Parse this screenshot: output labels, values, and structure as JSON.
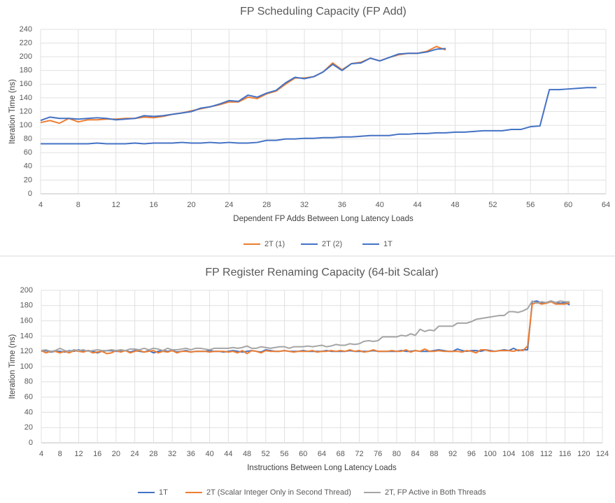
{
  "chart_data": [
    {
      "type": "line",
      "title": "FP Scheduling Capacity (FP Add)",
      "x_label": "Dependent FP Adds Between Long Latency Loads",
      "y_label": "Iteration Time (ns)",
      "x": [
        4,
        5,
        6,
        7,
        8,
        9,
        10,
        11,
        12,
        13,
        14,
        15,
        16,
        17,
        18,
        19,
        20,
        21,
        22,
        23,
        24,
        25,
        26,
        27,
        28,
        29,
        30,
        31,
        32,
        33,
        34,
        35,
        36,
        37,
        38,
        39,
        40,
        41,
        42,
        43,
        44,
        45,
        46,
        47,
        48,
        49,
        50,
        51,
        52,
        53,
        54,
        55,
        56,
        57,
        58,
        59,
        60,
        61,
        62,
        63
      ],
      "xlim": [
        4,
        64
      ],
      "xticks": [
        4,
        8,
        12,
        16,
        20,
        24,
        28,
        32,
        36,
        40,
        44,
        48,
        52,
        56,
        60,
        64
      ],
      "ylim": [
        0,
        240
      ],
      "yticks": [
        0,
        20,
        40,
        60,
        80,
        100,
        120,
        140,
        160,
        180,
        200,
        220,
        240
      ],
      "grid": true,
      "legend": "bottom",
      "series": [
        {
          "name": "2T (1)",
          "color": "#ed7d31",
          "values": [
            104,
            107,
            103,
            110,
            105,
            108,
            108,
            109,
            109,
            110,
            110,
            112,
            111,
            113,
            116,
            118,
            121,
            124,
            127,
            130,
            134,
            134,
            141,
            139,
            146,
            150,
            160,
            169,
            169,
            171,
            178,
            191,
            181,
            190,
            192,
            198,
            194,
            199,
            203,
            205,
            205,
            208,
            215,
            210,
            null,
            null,
            null,
            null,
            null,
            null,
            null,
            null,
            null,
            null,
            null,
            null,
            null,
            null,
            null,
            null
          ]
        },
        {
          "name": "2T (2)",
          "color": "#4472c4",
          "values": [
            107,
            112,
            110,
            110,
            109,
            110,
            111,
            110,
            108,
            109,
            110,
            114,
            113,
            114,
            116,
            118,
            120,
            125,
            127,
            131,
            136,
            135,
            144,
            141,
            147,
            151,
            162,
            170,
            168,
            171,
            178,
            189,
            180,
            190,
            191,
            198,
            194,
            199,
            204,
            205,
            205,
            207,
            211,
            212,
            null,
            null,
            null,
            null,
            null,
            null,
            null,
            null,
            null,
            null,
            null,
            null,
            null,
            null,
            null,
            null
          ]
        },
        {
          "name": "1T",
          "color": "#4472c4",
          "values": [
            73,
            73,
            73,
            73,
            73,
            73,
            74,
            73,
            73,
            73,
            74,
            73,
            74,
            74,
            74,
            75,
            74,
            74,
            75,
            74,
            75,
            74,
            74,
            75,
            78,
            78,
            80,
            80,
            81,
            81,
            82,
            82,
            83,
            83,
            84,
            85,
            85,
            85,
            87,
            87,
            88,
            88,
            89,
            89,
            90,
            90,
            91,
            92,
            92,
            92,
            94,
            94,
            98,
            99,
            152,
            152,
            153,
            154,
            155,
            155
          ]
        }
      ]
    },
    {
      "type": "line",
      "title": "FP Register Renaming Capacity (64-bit Scalar)",
      "x_label": "Instructions Between Long Latency Loads",
      "y_label": "Iteration Time (ns)",
      "x": [
        4,
        5,
        6,
        7,
        8,
        9,
        10,
        11,
        12,
        13,
        14,
        15,
        16,
        17,
        18,
        19,
        20,
        21,
        22,
        23,
        24,
        25,
        26,
        27,
        28,
        29,
        30,
        31,
        32,
        33,
        34,
        35,
        36,
        37,
        38,
        39,
        40,
        41,
        42,
        43,
        44,
        45,
        46,
        47,
        48,
        49,
        50,
        51,
        52,
        53,
        54,
        55,
        56,
        57,
        58,
        59,
        60,
        61,
        62,
        63,
        64,
        65,
        66,
        67,
        68,
        69,
        70,
        71,
        72,
        73,
        74,
        75,
        76,
        77,
        78,
        79,
        80,
        81,
        82,
        83,
        84,
        85,
        86,
        87,
        88,
        89,
        90,
        91,
        92,
        93,
        94,
        95,
        96,
        97,
        98,
        99,
        100,
        101,
        102,
        103,
        104,
        105,
        106,
        107,
        108,
        109,
        110,
        111,
        112,
        113,
        114,
        115,
        116,
        117
      ],
      "xlim": [
        4,
        124
      ],
      "xticks": [
        4,
        8,
        12,
        16,
        20,
        24,
        28,
        32,
        36,
        40,
        44,
        48,
        52,
        56,
        60,
        64,
        68,
        72,
        76,
        80,
        84,
        88,
        92,
        96,
        100,
        104,
        108,
        112,
        116,
        120,
        124
      ],
      "ylim": [
        0,
        200
      ],
      "yticks": [
        0,
        20,
        40,
        60,
        80,
        100,
        120,
        140,
        160,
        180,
        200
      ],
      "grid": true,
      "legend": "bottom",
      "series": [
        {
          "name": "1T",
          "color": "#4472c4",
          "values": [
            120,
            121,
            119,
            120,
            120,
            119,
            121,
            120,
            122,
            120,
            121,
            120,
            118,
            120,
            121,
            121,
            120,
            120,
            121,
            119,
            121,
            120,
            119,
            121,
            118,
            120,
            121,
            120,
            121,
            119,
            120,
            121,
            119,
            120,
            120,
            120,
            121,
            120,
            120,
            119,
            120,
            121,
            120,
            119,
            120,
            121,
            120,
            119,
            122,
            121,
            120,
            120,
            121,
            120,
            120,
            120,
            121,
            120,
            120,
            120,
            120,
            121,
            120,
            120,
            120,
            120,
            121,
            120,
            120,
            120,
            120,
            121,
            120,
            120,
            120,
            120,
            120,
            121,
            120,
            120,
            121,
            120,
            120,
            120,
            121,
            122,
            121,
            120,
            120,
            123,
            121,
            120,
            121,
            121,
            120,
            122,
            121,
            120,
            121,
            122,
            121,
            124,
            121,
            122,
            122,
            185,
            186,
            183,
            184,
            186,
            184,
            183,
            184,
            181
          ]
        },
        {
          "name": "2T (Scalar Integer Only in Second Thread)",
          "color": "#ed7d31",
          "values": [
            121,
            118,
            120,
            120,
            118,
            120,
            118,
            121,
            120,
            119,
            121,
            118,
            119,
            120,
            117,
            118,
            121,
            119,
            121,
            118,
            120,
            121,
            119,
            120,
            121,
            118,
            120,
            119,
            121,
            118,
            120,
            120,
            119,
            120,
            120,
            120,
            119,
            120,
            120,
            120,
            119,
            120,
            118,
            121,
            117,
            121,
            120,
            118,
            121,
            120,
            120,
            120,
            121,
            120,
            119,
            120,
            120,
            120,
            121,
            119,
            120,
            120,
            121,
            120,
            121,
            120,
            122,
            120,
            121,
            119,
            120,
            122,
            120,
            120,
            120,
            121,
            120,
            120,
            122,
            119,
            121,
            120,
            123,
            120,
            120,
            121,
            120,
            120,
            120,
            120,
            119,
            121,
            120,
            118,
            122,
            122,
            120,
            120,
            121,
            121,
            121,
            120,
            122,
            121,
            127,
            182,
            184,
            182,
            183,
            185,
            182,
            182,
            182,
            184
          ]
        },
        {
          "name": "2T, FP Active in Both Threads",
          "color": "#a5a5a5",
          "values": [
            121,
            122,
            120,
            121,
            124,
            121,
            120,
            122,
            121,
            122,
            120,
            121,
            122,
            121,
            121,
            122,
            121,
            122,
            121,
            123,
            123,
            122,
            124,
            122,
            124,
            123,
            121,
            124,
            122,
            122,
            123,
            124,
            122,
            124,
            124,
            123,
            122,
            124,
            124,
            124,
            124,
            125,
            124,
            125,
            127,
            124,
            124,
            126,
            125,
            124,
            125,
            126,
            126,
            124,
            126,
            126,
            126,
            127,
            126,
            127,
            128,
            126,
            127,
            129,
            128,
            128,
            130,
            129,
            130,
            133,
            134,
            133,
            134,
            139,
            139,
            139,
            139,
            141,
            140,
            143,
            141,
            149,
            146,
            148,
            147,
            153,
            153,
            153,
            153,
            157,
            157,
            157,
            159,
            162,
            163,
            164,
            165,
            166,
            167,
            167,
            172,
            172,
            171,
            173,
            176,
            186,
            183,
            185,
            184,
            186,
            184,
            186,
            185,
            185
          ]
        }
      ]
    }
  ]
}
